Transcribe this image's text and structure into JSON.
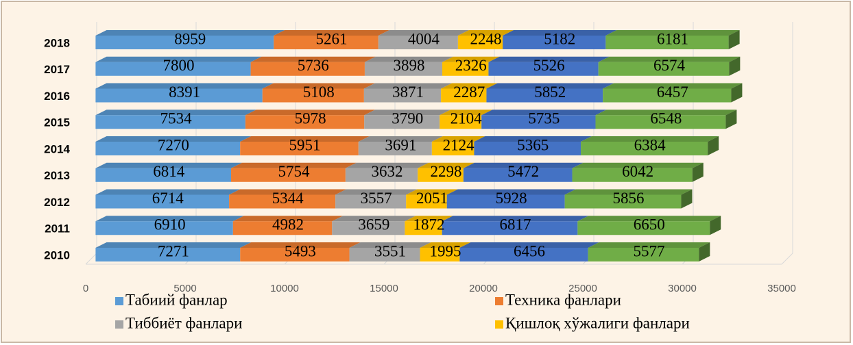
{
  "chart_data": {
    "type": "bar3d_stacked_horizontal",
    "categories": [
      "2010",
      "2011",
      "2012",
      "2013",
      "2014",
      "2015",
      "2016",
      "2017",
      "2018"
    ],
    "series": [
      {
        "name": "Табиий фанлар",
        "color": "#5b9bd5",
        "values": [
          7271,
          6910,
          6714,
          6814,
          7270,
          7534,
          8391,
          7800,
          8959
        ]
      },
      {
        "name": "Техника фанлари",
        "color": "#ed7d31",
        "values": [
          5493,
          4982,
          5344,
          5754,
          5951,
          5978,
          5108,
          5736,
          5261
        ]
      },
      {
        "name": "Тиббиёт фанлари",
        "color": "#a5a5a5",
        "values": [
          3551,
          3659,
          3557,
          3632,
          3691,
          3790,
          3871,
          3898,
          4004
        ]
      },
      {
        "name": "Қишлоқ хўжалиги фанлари",
        "color": "#ffc000",
        "values": [
          1995,
          1872,
          2051,
          2298,
          2124,
          2104,
          2287,
          2326,
          2248
        ]
      },
      {
        "color": "#4472c4",
        "values": [
          6456,
          6817,
          5928,
          5472,
          5365,
          5735,
          5852,
          5526,
          5182
        ]
      },
      {
        "color": "#70ad47",
        "values": [
          5577,
          6650,
          5856,
          6042,
          6384,
          6548,
          6457,
          6574,
          6181
        ]
      }
    ],
    "xlim": [
      0,
      35000
    ],
    "xticks": [
      0,
      5000,
      10000,
      15000,
      20000,
      25000,
      30000,
      35000
    ],
    "grid": true
  }
}
